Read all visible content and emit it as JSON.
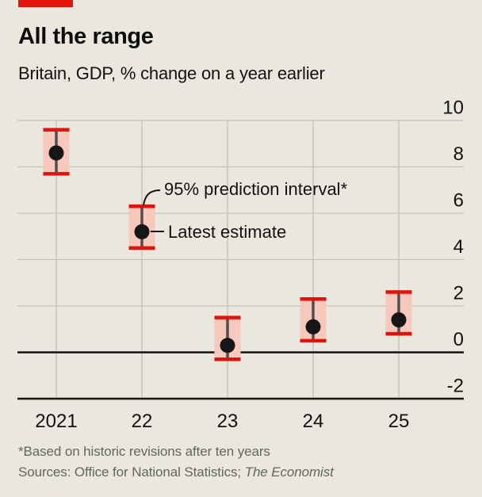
{
  "header": {
    "title": "All the range",
    "subtitle": "Britain, GDP, % change on a year earlier"
  },
  "footer": {
    "footnote": "*Based on historic revisions after ten years",
    "sources_prefix": "Sources: Office for National Statistics; ",
    "sources_italic": "The Economist"
  },
  "colors": {
    "background": "#e9e7de",
    "accent_red": "#e3120b",
    "band_pink": "#f8c8ba",
    "cap_red": "#e3120b",
    "stem_gray": "#4f4f4f",
    "dot_black": "#161616",
    "gridline_gray": "#c1c1b8",
    "axis_black": "#141414",
    "text_dark": "#121212",
    "footnote_gray": "#63665d"
  },
  "chart_data": {
    "type": "scatter",
    "subtype": "dot-with-95%-prediction-interval-range",
    "title": "All the range",
    "subtitle": "Britain, GDP, % change on a year earlier",
    "categories": [
      "2021",
      "22",
      "23",
      "24",
      "25"
    ],
    "series": [
      {
        "name": "Latest estimate",
        "values": [
          8.6,
          5.2,
          0.3,
          1.1,
          1.4
        ]
      },
      {
        "name": "95% prediction interval* low",
        "values": [
          7.7,
          4.5,
          -0.3,
          0.5,
          0.8
        ]
      },
      {
        "name": "95% prediction interval* high",
        "values": [
          9.6,
          6.3,
          1.5,
          2.3,
          2.6
        ]
      }
    ],
    "xlabel": "",
    "ylabel": "% change on a year earlier",
    "ylim": [
      -2,
      10
    ],
    "yticks": [
      -2,
      0,
      2,
      4,
      6,
      8,
      10
    ],
    "ytick_side": "right",
    "grid": true,
    "zero_line": "thick black",
    "bottom_axis_value": -2,
    "annotations": [
      {
        "text": "95% prediction interval*",
        "points_to": "upper interval cap of 22"
      },
      {
        "text": "Latest estimate",
        "points_to": "estimate dot of 22"
      }
    ]
  }
}
